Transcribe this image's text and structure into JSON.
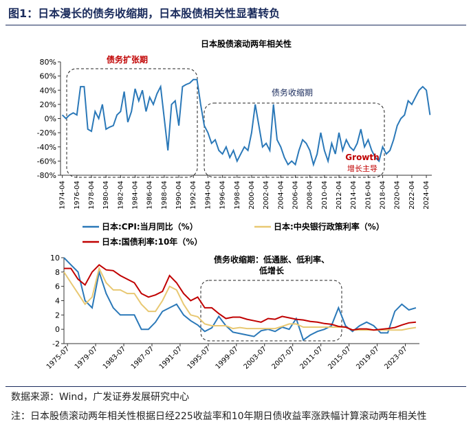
{
  "header": {
    "title": "图1：日本漫长的债务收缩期，日本股债相关性显著转负"
  },
  "footer": {
    "source": "数据来源：Wind，广发证券发展研究中心",
    "note": "注：日本股债滚动两年相关性根据日经225收益率和10年期日债收益率涨跌幅计算滚动两年相关性"
  },
  "chart_data": [
    {
      "type": "line",
      "title": "日本股债滚动两年相关性",
      "x": [
        "1974-04",
        "1974-10",
        "1975-04",
        "1975-10",
        "1976-04",
        "1976-10",
        "1977-04",
        "1977-10",
        "1978-04",
        "1978-10",
        "1979-04",
        "1979-10",
        "1980-04",
        "1980-10",
        "1981-04",
        "1981-10",
        "1982-04",
        "1982-10",
        "1983-04",
        "1983-10",
        "1984-04",
        "1984-10",
        "1985-04",
        "1985-10",
        "1986-04",
        "1986-10",
        "1987-04",
        "1987-10",
        "1988-04",
        "1988-10",
        "1989-04",
        "1989-10",
        "1990-04",
        "1990-10",
        "1991-04",
        "1991-10",
        "1992-04",
        "1992-10",
        "1993-04",
        "1993-10",
        "1994-04",
        "1994-10",
        "1995-04",
        "1995-10",
        "1996-04",
        "1996-10",
        "1997-04",
        "1997-10",
        "1998-04",
        "1998-10",
        "1999-04",
        "1999-10",
        "2000-04",
        "2000-10",
        "2001-04",
        "2001-10",
        "2002-04",
        "2002-10",
        "2003-04",
        "2003-10",
        "2004-04",
        "2004-10",
        "2005-04",
        "2005-10",
        "2006-04",
        "2006-10",
        "2007-04",
        "2007-10",
        "2008-04",
        "2008-10",
        "2009-04",
        "2009-10",
        "2010-04",
        "2010-10",
        "2011-04",
        "2011-10",
        "2012-04",
        "2012-10",
        "2013-04",
        "2013-10",
        "2014-04",
        "2014-10",
        "2015-04",
        "2015-10",
        "2016-04",
        "2016-10",
        "2017-04",
        "2017-10",
        "2018-04",
        "2018-10",
        "2019-04",
        "2019-10",
        "2020-04",
        "2020-10",
        "2021-04",
        "2021-10",
        "2022-04",
        "2022-10",
        "2023-04",
        "2023-10",
        "2024-04",
        "2024-10"
      ],
      "series": [
        {
          "color": "#2a78b8",
          "values": [
            5,
            0,
            5,
            8,
            5,
            45,
            45,
            -15,
            -18,
            10,
            0,
            20,
            -15,
            -12,
            -10,
            5,
            10,
            38,
            -5,
            10,
            42,
            25,
            40,
            10,
            30,
            20,
            35,
            45,
            0,
            -45,
            20,
            25,
            -10,
            45,
            48,
            50,
            55,
            55,
            20,
            -10,
            -20,
            -35,
            -30,
            -45,
            -50,
            -40,
            -55,
            -45,
            -60,
            -50,
            -40,
            -45,
            -20,
            20,
            -10,
            -40,
            -35,
            -45,
            20,
            -30,
            -40,
            -55,
            -65,
            -60,
            -65,
            -45,
            -30,
            -35,
            -45,
            -65,
            -50,
            -20,
            -45,
            -60,
            -35,
            -50,
            -20,
            -45,
            -30,
            -40,
            -45,
            -35,
            -15,
            -40,
            -30,
            -45,
            -55,
            -60,
            -40,
            -50,
            -45,
            -30,
            -10,
            0,
            5,
            25,
            20,
            30,
            40,
            45,
            40,
            5
          ]
        }
      ],
      "xlim": [
        "1974-01",
        "2025-01"
      ],
      "xticks": [
        "1974-04",
        "1976-04",
        "1978-04",
        "1980-04",
        "1982-04",
        "1984-04",
        "1986-04",
        "1988-04",
        "1990-04",
        "1992-04",
        "1994-04",
        "1996-04",
        "1998-04",
        "2000-04",
        "2002-04",
        "2004-04",
        "2006-04",
        "2008-04",
        "2010-04",
        "2012-04",
        "2014-04",
        "2016-04",
        "2018-04",
        "2020-04",
        "2022-04",
        "2024-04"
      ],
      "ylim": [
        -80,
        80
      ],
      "yticks": [
        {
          "value": -80,
          "label": "-80%"
        },
        {
          "value": -60,
          "label": "-60%"
        },
        {
          "value": -40,
          "label": "-40%"
        },
        {
          "value": -20,
          "label": "-20%"
        },
        {
          "value": 0,
          "label": "0%"
        },
        {
          "value": 20,
          "label": "20%"
        },
        {
          "value": 40,
          "label": "40%"
        },
        {
          "value": 60,
          "label": "60%"
        },
        {
          "value": 80,
          "label": "80%"
        }
      ],
      "annotations": [
        "债务扩张期",
        "债务收缩期",
        "Growth",
        "增长主导"
      ]
    },
    {
      "type": "line",
      "x": [
        "1975-01",
        "1976-01",
        "1977-01",
        "1978-01",
        "1979-01",
        "1980-01",
        "1981-01",
        "1982-01",
        "1983-01",
        "1984-01",
        "1985-01",
        "1986-01",
        "1987-01",
        "1988-01",
        "1989-01",
        "1990-01",
        "1991-01",
        "1992-01",
        "1993-01",
        "1994-01",
        "1995-01",
        "1996-01",
        "1997-01",
        "1998-01",
        "1999-01",
        "2000-01",
        "2001-01",
        "2002-01",
        "2003-01",
        "2004-01",
        "2005-01",
        "2006-01",
        "2007-01",
        "2008-01",
        "2009-01",
        "2010-01",
        "2011-01",
        "2012-01",
        "2013-01",
        "2014-01",
        "2015-01",
        "2016-01",
        "2017-01",
        "2018-01",
        "2019-01",
        "2020-01",
        "2021-01",
        "2022-01",
        "2023-01",
        "2024-01",
        "2025-01"
      ],
      "series": [
        {
          "name": "日本:CPI:当月同比（%）",
          "color": "#2a78b8",
          "values": [
            10,
            9,
            8,
            4,
            3,
            8,
            5,
            3,
            2,
            2,
            2,
            0,
            0,
            1,
            2.5,
            3,
            3.5,
            2,
            1.2,
            0.6,
            -0.3,
            0.2,
            1.8,
            0.5,
            -0.4,
            -0.6,
            -0.8,
            -1,
            -0.2,
            0,
            -0.3,
            0.3,
            0,
            1.5,
            -1.5,
            -0.8,
            -0.3,
            0,
            0.5,
            3,
            0.5,
            -0.3,
            0.5,
            1,
            0.5,
            -0.5,
            -0.5,
            2.5,
            3.5,
            2.7,
            3
          ]
        },
        {
          "name": "日本:中央银行政策利率（%）",
          "color": "#e8c872",
          "values": [
            8,
            6.5,
            5,
            3.5,
            4.5,
            8.5,
            6.5,
            5.5,
            5.5,
            5,
            5,
            3.5,
            2.5,
            2.5,
            4,
            6,
            5.5,
            3.5,
            2,
            1.75,
            0.75,
            0.5,
            0.5,
            0.5,
            0.1,
            0.25,
            0.1,
            0.1,
            0.1,
            0.1,
            0.1,
            0.4,
            0.75,
            0.75,
            0.3,
            0.3,
            0.3,
            0.3,
            0.3,
            0.3,
            0.3,
            -0.1,
            -0.1,
            -0.1,
            -0.1,
            -0.1,
            -0.1,
            -0.1,
            -0.1,
            0.1,
            0.25
          ]
        },
        {
          "name": "日本:国债利率:10年（%）",
          "color": "#c00000",
          "values": [
            8.5,
            8.5,
            7,
            6.2,
            8,
            9,
            8.3,
            8.2,
            7.5,
            7,
            6.5,
            5,
            4.5,
            4.8,
            5.3,
            7.5,
            6.5,
            5,
            4,
            4.5,
            3,
            3,
            2.2,
            1.5,
            1.7,
            1.7,
            1.4,
            1.2,
            1,
            1.5,
            1.4,
            1.8,
            1.6,
            1.4,
            1.3,
            1.1,
            1,
            0.8,
            0.7,
            0.4,
            0.3,
            -0.1,
            0.05,
            0.05,
            -0.1,
            0,
            0.1,
            0.25,
            0.6,
            0.9,
            1
          ]
        }
      ],
      "xlim": [
        "1975-01",
        "2025-07"
      ],
      "xticks": [
        "1975-07",
        "1979-07",
        "1983-07",
        "1987-07",
        "1991-07",
        "1995-07",
        "1999-07",
        "2003-07",
        "2007-07",
        "2011-07",
        "2015-07",
        "2019-07",
        "2023-07"
      ],
      "ylim": [
        -2,
        10
      ],
      "yticks": [
        -2,
        0,
        2,
        4,
        6,
        8,
        10
      ],
      "annotations": [
        "债务收缩期：低通胀、低利率、",
        "低增长"
      ]
    }
  ]
}
